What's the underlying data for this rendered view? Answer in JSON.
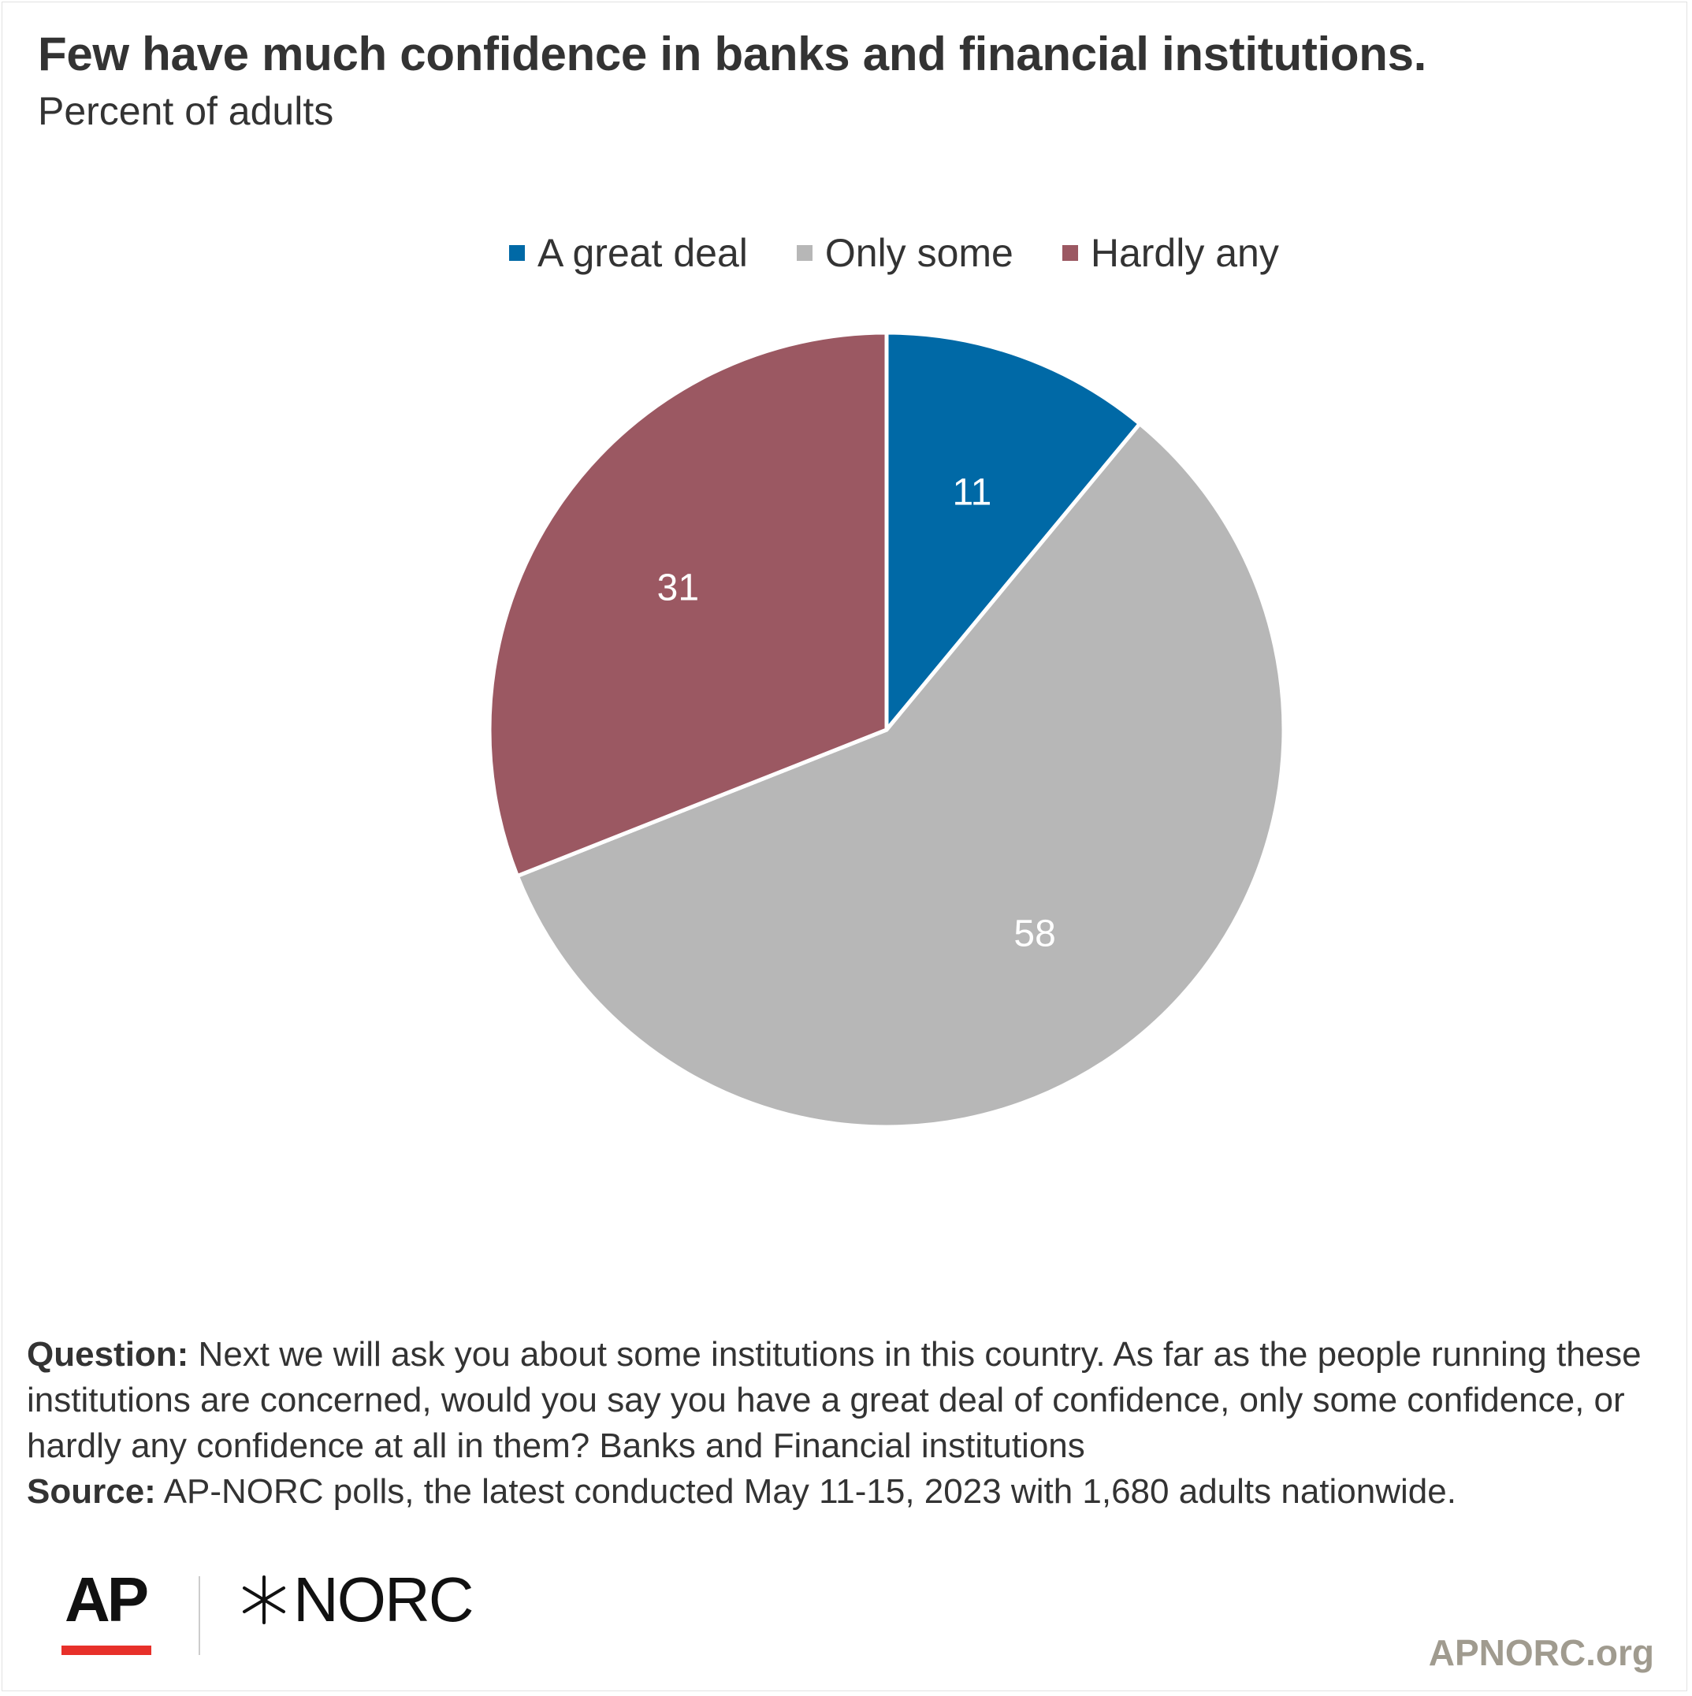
{
  "title": "Few have much confidence in banks and financial institutions.",
  "subtitle": "Percent of adults",
  "chart_data": {
    "type": "pie",
    "title": "Few have much confidence in banks and financial institutions.",
    "subtitle": "Percent of adults",
    "legend_position": "top-center",
    "slices": [
      {
        "label": "A great deal",
        "value": 11,
        "color": "#0069a6"
      },
      {
        "label": "Only some",
        "value": 58,
        "color": "#b7b7b7"
      },
      {
        "label": "Hardly any",
        "value": 31,
        "color": "#9b5862"
      }
    ]
  },
  "notes": {
    "question_label": "Question:",
    "question_text": " Next we will ask you about some institutions in this country. As far as the people running these institutions are concerned, would you say you have a great deal of confidence, only some confidence, or hardly any confidence at all in them? Banks and Financial institutions",
    "source_label": "Source:",
    "source_text": " AP-NORC polls, the latest conducted May 11-15, 2023 with 1,680 adults nationwide."
  },
  "branding": {
    "ap_logo": "AP",
    "norc_logo": "NORC",
    "website": "APNORC.org",
    "ap_red": "#e7302a",
    "website_color": "#a09b8f"
  }
}
